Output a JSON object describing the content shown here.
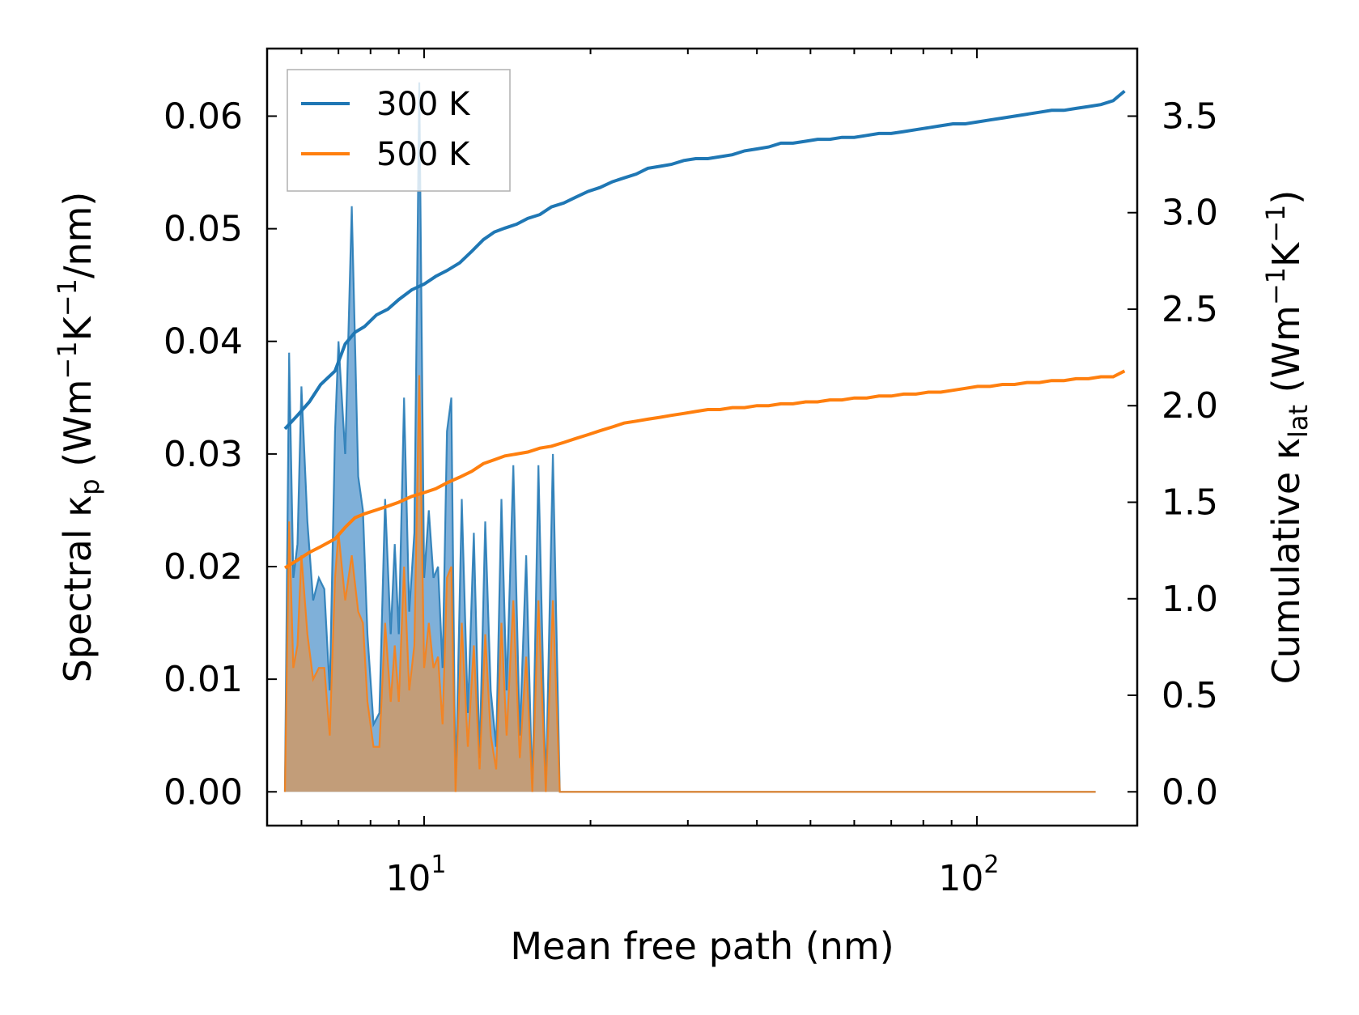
{
  "chart_data": {
    "type": "line",
    "xscale": "log",
    "xlabel": "Mean free path (nm)",
    "xlim": [
      5.2,
      195
    ],
    "x_ticks": [
      {
        "base": "10",
        "exp": "1",
        "value": 10
      },
      {
        "base": "10",
        "exp": "2",
        "value": 100
      }
    ],
    "ylabel_left": {
      "pre": "Spectral κ",
      "sub": "p",
      "mid": " (Wm",
      "sup1": "−1",
      "k": "K",
      "sup2": "−1",
      "post": "/nm)"
    },
    "ylabel_right": {
      "pre": "Cumulative κ",
      "sub": "lat",
      "mid": " (Wm",
      "sup1": "−1",
      "k": "K",
      "sup2": "−1",
      "post": ")"
    },
    "ylim_left": [
      -0.003,
      0.066
    ],
    "ylim_right": [
      -0.175,
      3.85
    ],
    "yticks_left": [
      "0.00",
      "0.01",
      "0.02",
      "0.03",
      "0.04",
      "0.05",
      "0.06"
    ],
    "yticks_right": [
      "0.0",
      "0.5",
      "1.0",
      "1.5",
      "2.0",
      "2.5",
      "3.0",
      "3.5"
    ],
    "legend": {
      "location": "upper-left",
      "entries": [
        {
          "label": "300 K",
          "color": "#1f77b4"
        },
        {
          "label": "500 K",
          "color": "#ff7f0e"
        }
      ]
    },
    "colors": {
      "k300": "#1f77b4",
      "k500": "#ff7f0e",
      "fill300": "#7fb0d9",
      "fill500": "#c69c74"
    },
    "spectral": {
      "x": [
        5.6,
        5.7,
        5.8,
        5.9,
        6.0,
        6.15,
        6.3,
        6.45,
        6.6,
        6.75,
        6.9,
        7.0,
        7.2,
        7.4,
        7.6,
        7.75,
        7.9,
        8.1,
        8.3,
        8.5,
        8.7,
        8.85,
        9.0,
        9.2,
        9.4,
        9.6,
        9.8,
        10.0,
        10.2,
        10.4,
        10.6,
        10.8,
        11.0,
        11.2,
        11.4,
        11.7,
        12.0,
        12.3,
        12.6,
        12.9,
        13.2,
        13.5,
        13.8,
        14.1,
        14.5,
        14.9,
        15.3,
        15.7,
        16.1,
        16.6,
        17.1,
        17.6,
        18.1,
        18.6,
        19.2,
        19.8,
        20.4,
        21.0,
        21.6,
        22.2,
        22.8,
        23.4,
        24.0,
        24.6,
        25.3,
        26.0,
        26.8,
        27.6,
        28.4,
        30.0,
        31.2,
        32.0,
        33.0,
        34.0,
        40.0,
        41.0,
        42.0,
        44.0,
        45.0,
        46.0,
        47.0,
        48.0,
        50.0,
        51.0,
        52.0,
        55.0,
        56.0,
        57.0,
        70.0,
        72.0,
        74.0,
        88.0,
        90.0,
        92.0,
        97.0,
        99.0,
        101.0,
        103.0,
        106.0,
        110.0,
        113.0,
        116.0,
        126.0,
        130.0,
        134.0,
        160.0,
        164.0,
        168.0,
        176.0,
        180.0,
        185.0
      ],
      "k300": [
        0.0,
        0.039,
        0.019,
        0.022,
        0.036,
        0.024,
        0.017,
        0.019,
        0.018,
        0.009,
        0.032,
        0.04,
        0.03,
        0.052,
        0.028,
        0.025,
        0.014,
        0.006,
        0.007,
        0.026,
        0.014,
        0.022,
        0.014,
        0.035,
        0.016,
        0.023,
        0.063,
        0.019,
        0.025,
        0.019,
        0.02,
        0.011,
        0.032,
        0.035,
        0.0,
        0.026,
        0.007,
        0.023,
        0.003,
        0.024,
        0.009,
        0.004,
        0.026,
        0.009,
        0.029,
        0.005,
        0.021,
        0.0,
        0.029,
        0.0,
        0.03,
        0.0,
        0.0,
        0.0,
        0.0,
        0.0,
        0.0,
        0.0,
        0.0,
        0.0,
        0.0,
        0.0,
        0.0,
        0.0,
        0.0,
        0.0,
        0.0,
        0.0,
        0.0,
        0.0,
        0.0,
        0.0,
        0.0,
        0.0,
        0.0,
        0.0,
        0.0,
        0.0,
        0.0,
        0.0,
        0.0,
        0.0,
        0.0,
        0.0,
        0.0,
        0.0,
        0.0,
        0.0,
        0.0,
        0.0,
        0.0,
        0.0,
        0.0,
        0.0,
        0.0,
        0.0,
        0.0,
        0.0,
        0.0,
        0.0,
        0.0,
        0.0,
        0.0,
        0.0,
        0.0,
        0.0,
        0.0
      ],
      "k500": [
        0.0,
        0.024,
        0.011,
        0.013,
        0.021,
        0.014,
        0.01,
        0.011,
        0.011,
        0.005,
        0.019,
        0.023,
        0.017,
        0.021,
        0.016,
        0.015,
        0.008,
        0.004,
        0.004,
        0.015,
        0.008,
        0.013,
        0.008,
        0.02,
        0.009,
        0.013,
        0.037,
        0.011,
        0.015,
        0.011,
        0.012,
        0.006,
        0.019,
        0.02,
        0.0,
        0.015,
        0.004,
        0.013,
        0.002,
        0.014,
        0.005,
        0.002,
        0.015,
        0.005,
        0.017,
        0.003,
        0.012,
        0.0,
        0.017,
        0.0,
        0.017,
        0.0,
        0.0,
        0.0,
        0.0,
        0.0,
        0.0,
        0.0,
        0.0,
        0.0,
        0.0,
        0.0,
        0.0,
        0.0,
        0.0,
        0.0,
        0.0,
        0.0,
        0.0,
        0.0,
        0.0,
        0.0,
        0.0,
        0.0,
        0.0,
        0.0,
        0.0,
        0.0,
        0.0,
        0.0,
        0.0,
        0.0,
        0.0,
        0.0,
        0.0,
        0.0,
        0.0,
        0.0,
        0.0,
        0.0,
        0.0,
        0.0,
        0.0,
        0.0,
        0.0,
        0.0,
        0.0,
        0.0,
        0.0,
        0.0,
        0.0,
        0.0,
        0.0,
        0.0,
        0.0,
        0.0,
        0.0
      ]
    },
    "cumulative": {
      "x": [
        5.6,
        5.9,
        6.2,
        6.5,
        6.9,
        7.2,
        7.5,
        7.8,
        8.2,
        8.6,
        9.0,
        9.5,
        10.0,
        10.5,
        11.0,
        11.6,
        12.2,
        12.8,
        13.4,
        14.0,
        14.7,
        15.4,
        16.2,
        17.0,
        17.9,
        18.8,
        19.8,
        20.8,
        21.9,
        23.0,
        24.2,
        25.4,
        26.7,
        28.0,
        29.5,
        31.0,
        32.6,
        34.3,
        36.1,
        38.0,
        40.0,
        42.0,
        44.2,
        46.5,
        49.0,
        51.5,
        54.2,
        57.0,
        60.0,
        63.2,
        66.5,
        70.0,
        73.7,
        77.6,
        81.7,
        86.0,
        90.5,
        95.3,
        100.3,
        105.6,
        111.2,
        117.0,
        123.2,
        129.7,
        136.5,
        143.7,
        151.2,
        159.2,
        167.6,
        176.4,
        185.0
      ],
      "k300": [
        1.88,
        1.95,
        2.02,
        2.11,
        2.18,
        2.32,
        2.38,
        2.41,
        2.47,
        2.5,
        2.55,
        2.6,
        2.63,
        2.67,
        2.7,
        2.74,
        2.8,
        2.86,
        2.9,
        2.92,
        2.94,
        2.97,
        2.99,
        3.03,
        3.05,
        3.08,
        3.11,
        3.13,
        3.16,
        3.18,
        3.2,
        3.23,
        3.24,
        3.25,
        3.27,
        3.28,
        3.28,
        3.29,
        3.3,
        3.32,
        3.33,
        3.34,
        3.36,
        3.36,
        3.37,
        3.38,
        3.38,
        3.39,
        3.39,
        3.4,
        3.41,
        3.41,
        3.42,
        3.43,
        3.44,
        3.45,
        3.46,
        3.46,
        3.47,
        3.48,
        3.49,
        3.5,
        3.51,
        3.52,
        3.53,
        3.53,
        3.54,
        3.55,
        3.56,
        3.58,
        3.63
      ],
      "k500": [
        1.16,
        1.2,
        1.24,
        1.27,
        1.31,
        1.37,
        1.42,
        1.44,
        1.46,
        1.48,
        1.5,
        1.53,
        1.55,
        1.57,
        1.6,
        1.63,
        1.66,
        1.7,
        1.72,
        1.74,
        1.75,
        1.76,
        1.78,
        1.79,
        1.81,
        1.83,
        1.85,
        1.87,
        1.89,
        1.91,
        1.92,
        1.93,
        1.94,
        1.95,
        1.96,
        1.97,
        1.98,
        1.98,
        1.99,
        1.99,
        2.0,
        2.0,
        2.01,
        2.01,
        2.02,
        2.02,
        2.03,
        2.03,
        2.04,
        2.04,
        2.05,
        2.05,
        2.06,
        2.06,
        2.07,
        2.07,
        2.08,
        2.09,
        2.1,
        2.1,
        2.11,
        2.11,
        2.12,
        2.12,
        2.13,
        2.13,
        2.14,
        2.14,
        2.15,
        2.15,
        2.18
      ]
    }
  }
}
